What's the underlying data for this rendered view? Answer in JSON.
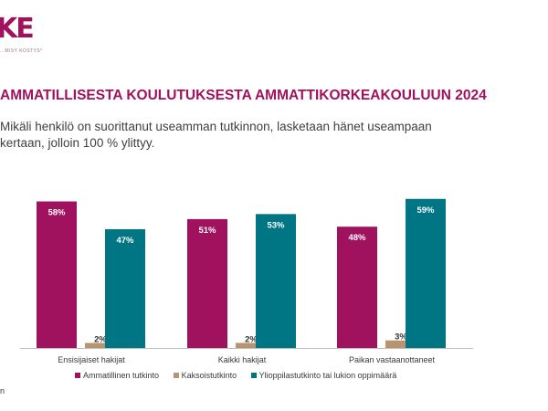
{
  "header": {
    "logo_text": "KE",
    "logo_tagline": "…MISY·KOSTYS°"
  },
  "title": "AMMATILLISESTA KOULUTUKSESTA AMMATTIKORKEAKOULUUN 2024",
  "subtitle": "Mikäli henkilö on suorittanut useamman tutkinnon, lasketaan hänet useampaan kertaan, jolloin 100 % ylittyy.",
  "footnote": "n",
  "colors": {
    "magenta": "#a0115e",
    "tan": "#b89470",
    "teal": "#007583",
    "axis": "#bfbfbf"
  },
  "chart_data": {
    "type": "bar",
    "categories": [
      "Ensisijaiset hakijat",
      "Kaikki hakijat",
      "Paikan vastaanottaneet"
    ],
    "series": [
      {
        "name": "Ammatillinen tutkinto",
        "values": [
          58,
          51,
          48
        ],
        "labels": [
          "58%",
          "51%",
          "48%"
        ],
        "color": "#a0115e"
      },
      {
        "name": "Kaksoistutkinto",
        "values": [
          2,
          2,
          3
        ],
        "labels": [
          "2%",
          "2%",
          "3%"
        ],
        "color": "#b89470"
      },
      {
        "name": "Ylioppilastutkinto tai lukion oppimäärä",
        "values": [
          47,
          53,
          59
        ],
        "labels": [
          "47%",
          "53%",
          "59%"
        ],
        "color": "#007583"
      }
    ],
    "ylim": [
      0,
      60
    ],
    "legend_position": "bottom",
    "grid": false
  }
}
